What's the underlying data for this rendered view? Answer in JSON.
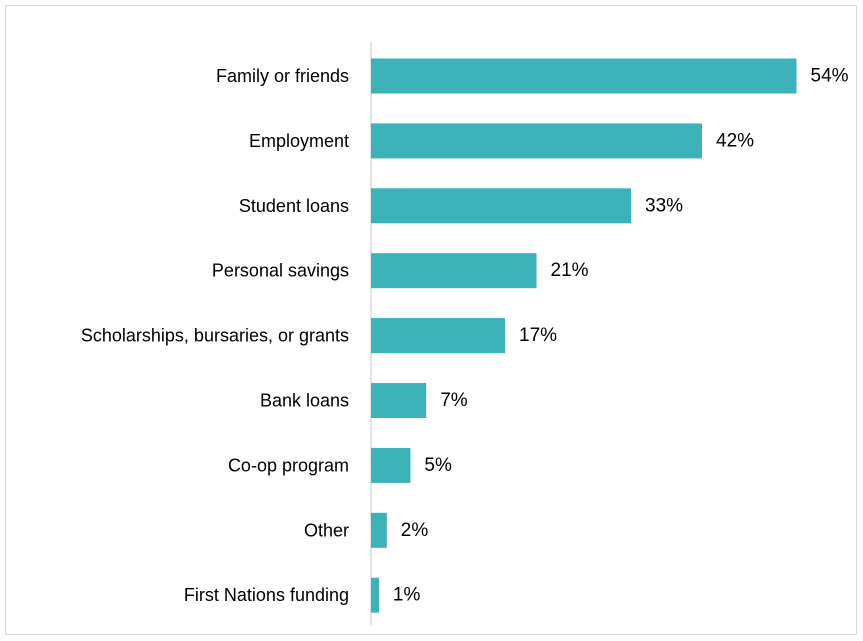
{
  "chart_data": {
    "type": "bar",
    "orientation": "horizontal",
    "categories": [
      "Family or friends",
      "Employment",
      "Student loans",
      "Personal savings",
      "Scholarships, bursaries, or grants",
      "Bank loans",
      "Co-op program",
      "Other",
      "First Nations funding"
    ],
    "values": [
      54,
      42,
      33,
      21,
      17,
      7,
      5,
      2,
      1
    ],
    "value_labels": [
      "54%",
      "42%",
      "33%",
      "21%",
      "17%",
      "7%",
      "5%",
      "2%",
      "1%"
    ],
    "unit": "%",
    "title": "",
    "xlabel": "",
    "ylabel": "",
    "xlim": [
      0,
      60
    ],
    "grid": false,
    "legend": "none",
    "bar_color": "#3BB2B8",
    "axis_color": "#d9d9d9"
  }
}
